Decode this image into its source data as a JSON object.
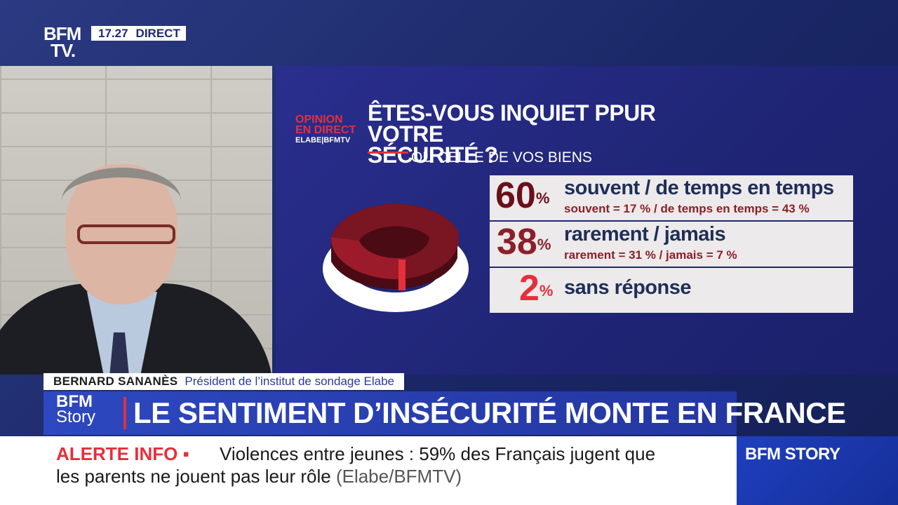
{
  "header": {
    "logo": [
      "BFM",
      "TV."
    ],
    "time": "17.27",
    "live": "DIRECT"
  },
  "poll": {
    "logo_lines": [
      "OPINION",
      "EN DIRECT"
    ],
    "logo_sub": "ELABE|BFMTV",
    "title_lines": [
      "ÊTES-VOUS INQUIET PPUR VOTRE",
      "SÉCURITÉ ?"
    ],
    "subtitle": "OU CELLE DE VOS BIENS",
    "results": [
      {
        "value": "60",
        "label": "souvent / de temps en temps",
        "detail": "souvent = 17 % / de temps en temps = 43 %",
        "color": "#6b0f1a"
      },
      {
        "value": "38",
        "label": "rarement / jamais",
        "detail": "rarement = 31 %  / jamais = 7 %",
        "color": "#8c1f2a"
      },
      {
        "value": "2",
        "label": "sans réponse",
        "detail": "",
        "color": "#e4303c"
      }
    ],
    "percent_symbol": "%"
  },
  "strap": {
    "name": "BERNARD SANANÈS",
    "role": "Président de l’institut de sondage Elabe"
  },
  "headline": {
    "logo": [
      "BFM",
      "Story"
    ],
    "text": "LE SENTIMENT D’INSÉCURITÉ MONTE EN FRANCE"
  },
  "ticker": {
    "alert": "ALERTE INFO ▪",
    "line1": "Violences entre jeunes : 59% des Français jugent que",
    "line2": "les parents ne jouent pas leur rôle",
    "source": "(Elabe/BFMTV)"
  },
  "channel": "BFM STORY"
}
